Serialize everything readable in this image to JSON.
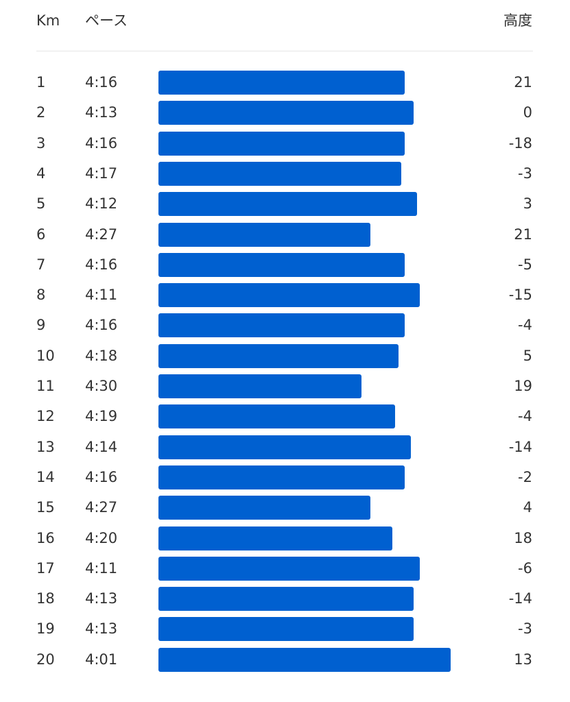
{
  "header": {
    "km_label": "Km",
    "pace_label": "ペース",
    "altitude_label": "高度"
  },
  "colors": {
    "bar": "#0060d0",
    "text": "#333333",
    "divider": "#e6e6e6"
  },
  "chart_data": {
    "type": "bar",
    "orientation": "horizontal",
    "columns": [
      "Km",
      "ペース",
      "高度"
    ],
    "rows": [
      {
        "km": "1",
        "pace": "4:16",
        "altitude": "21"
      },
      {
        "km": "2",
        "pace": "4:13",
        "altitude": "0"
      },
      {
        "km": "3",
        "pace": "4:16",
        "altitude": "-18"
      },
      {
        "km": "4",
        "pace": "4:17",
        "altitude": "-3"
      },
      {
        "km": "5",
        "pace": "4:12",
        "altitude": "3"
      },
      {
        "km": "6",
        "pace": "4:27",
        "altitude": "21"
      },
      {
        "km": "7",
        "pace": "4:16",
        "altitude": "-5"
      },
      {
        "km": "8",
        "pace": "4:11",
        "altitude": "-15"
      },
      {
        "km": "9",
        "pace": "4:16",
        "altitude": "-4"
      },
      {
        "km": "10",
        "pace": "4:18",
        "altitude": "5"
      },
      {
        "km": "11",
        "pace": "4:30",
        "altitude": "19"
      },
      {
        "km": "12",
        "pace": "4:19",
        "altitude": "-4"
      },
      {
        "km": "13",
        "pace": "4:14",
        "altitude": "-14"
      },
      {
        "km": "14",
        "pace": "4:16",
        "altitude": "-2"
      },
      {
        "km": "15",
        "pace": "4:27",
        "altitude": "4"
      },
      {
        "km": "16",
        "pace": "4:20",
        "altitude": "18"
      },
      {
        "km": "17",
        "pace": "4:11",
        "altitude": "-6"
      },
      {
        "km": "18",
        "pace": "4:13",
        "altitude": "-14"
      },
      {
        "km": "19",
        "pace": "4:13",
        "altitude": "-3"
      },
      {
        "km": "20",
        "pace": "4:01",
        "altitude": "13"
      }
    ]
  }
}
